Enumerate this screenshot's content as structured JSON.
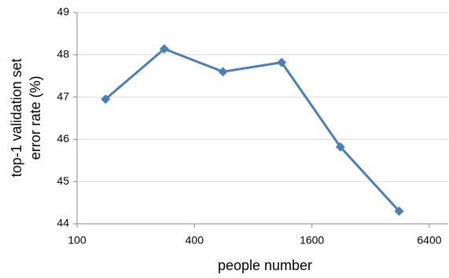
{
  "chart_data": {
    "type": "line",
    "xlabel": "people number",
    "ylabel": [
      "top-1 validation set",
      "error rate (%)"
    ],
    "x": [
      140,
      280,
      560,
      1120,
      2240,
      4480
    ],
    "values": [
      46.95,
      48.14,
      47.6,
      47.82,
      45.82,
      44.3
    ],
    "color": "#4a7ebb",
    "xscale": "log",
    "xlim": [
      100,
      8000
    ],
    "xticks": [
      100,
      400,
      1600,
      6400
    ],
    "ylim": [
      44,
      49
    ],
    "yticks": [
      44,
      45,
      46,
      47,
      48,
      49
    ],
    "grid": true
  }
}
